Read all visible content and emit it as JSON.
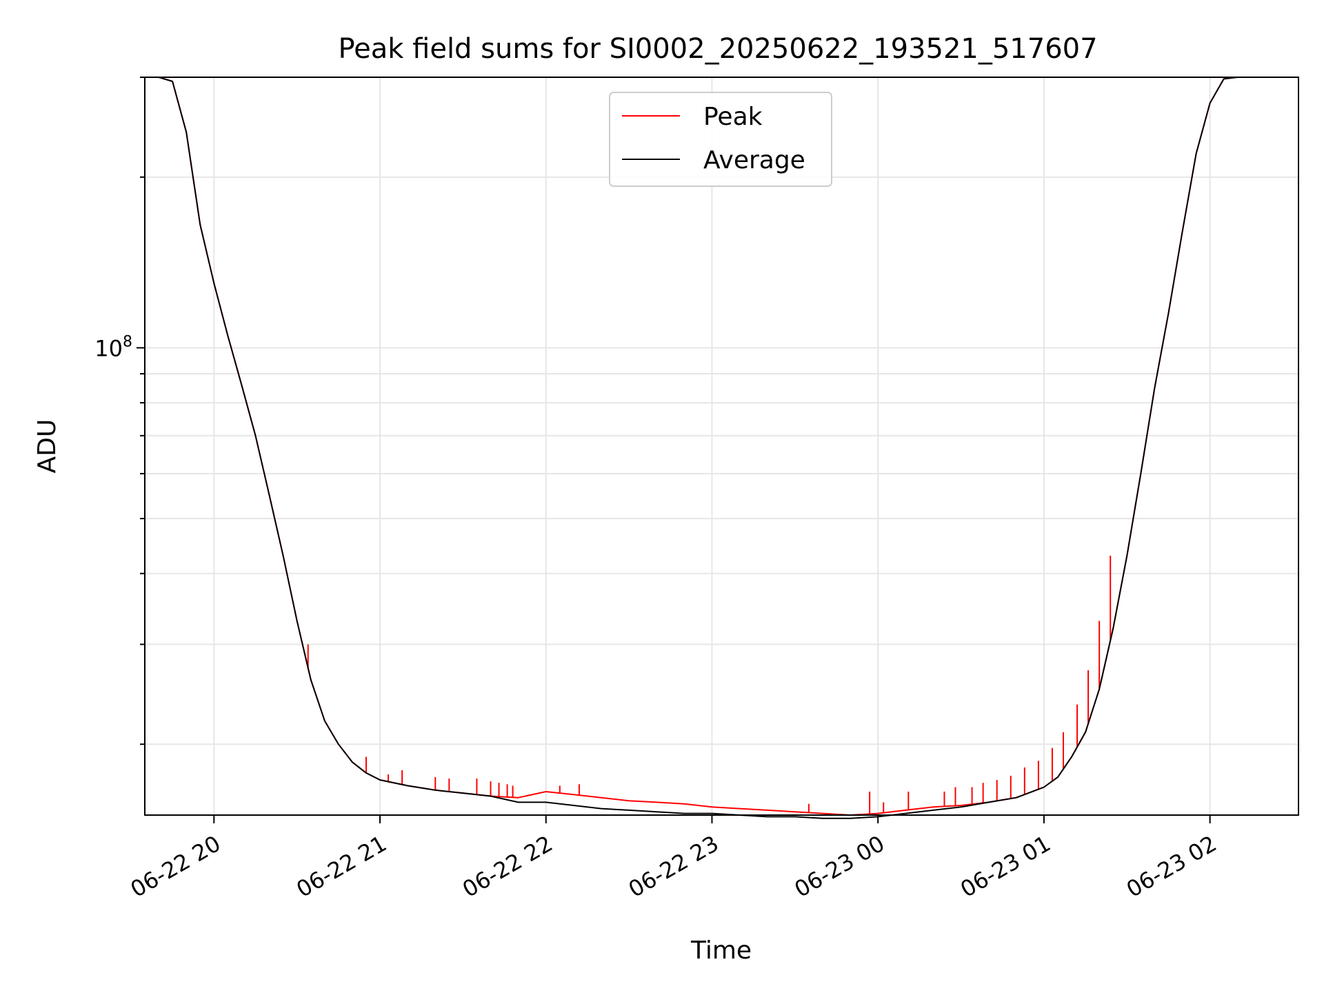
{
  "chart_data": {
    "type": "line",
    "title": "Peak field sums for SI0002_20250622_193521_517607",
    "xlabel": "Time",
    "ylabel": "ADU",
    "y_scale": "log",
    "ylim": [
      15000000,
      300000000
    ],
    "xlim": [
      "06-22 19:35",
      "06-23 02:32"
    ],
    "x_ticks": [
      "06-22 20",
      "06-22 21",
      "06-22 22",
      "06-22 23",
      "06-23 00",
      "06-23 01",
      "06-23 02"
    ],
    "y_tick_labels": [
      {
        "value": 100000000,
        "base": "10",
        "exponent": "8"
      }
    ],
    "grid": true,
    "legend_position": "top-center",
    "series": [
      {
        "name": "Peak",
        "color": "#ff0000",
        "x": [
          "06-22 19:35",
          "06-22 19:40",
          "06-22 19:45",
          "06-22 19:50",
          "06-22 19:55",
          "06-22 20:00",
          "06-22 20:05",
          "06-22 20:10",
          "06-22 20:15",
          "06-22 20:20",
          "06-22 20:25",
          "06-22 20:30",
          "06-22 20:35",
          "06-22 20:40",
          "06-22 20:45",
          "06-22 20:50",
          "06-22 20:55",
          "06-22 21:00",
          "06-22 21:10",
          "06-22 21:20",
          "06-22 21:30",
          "06-22 21:40",
          "06-22 21:50",
          "06-22 22:00",
          "06-22 22:10",
          "06-22 22:20",
          "06-22 22:30",
          "06-22 22:40",
          "06-22 22:50",
          "06-22 23:00",
          "06-22 23:10",
          "06-22 23:20",
          "06-22 23:30",
          "06-22 23:40",
          "06-22 23:50",
          "06-23 00:00",
          "06-23 00:10",
          "06-23 00:20",
          "06-23 00:30",
          "06-23 00:40",
          "06-23 00:50",
          "06-23 01:00",
          "06-23 01:05",
          "06-23 01:10",
          "06-23 01:15",
          "06-23 01:20",
          "06-23 01:25",
          "06-23 01:30",
          "06-23 01:35",
          "06-23 01:40",
          "06-23 01:45",
          "06-23 01:50",
          "06-23 01:55",
          "06-23 02:00",
          "06-23 02:05",
          "06-23 02:10",
          "06-23 02:15",
          "06-23 02:20",
          "06-23 02:25",
          "06-23 02:32"
        ],
        "values": [
          300000000,
          300000000,
          295000000,
          240000000,
          165000000,
          130000000,
          105000000,
          86000000,
          70000000,
          55000000,
          43000000,
          33000000,
          26000000,
          22000000,
          20000000,
          18600000,
          17800000,
          17300000,
          16900000,
          16600000,
          16400000,
          16200000,
          16100000,
          16500000,
          16300000,
          16100000,
          15900000,
          15800000,
          15700000,
          15500000,
          15400000,
          15300000,
          15200000,
          15100000,
          15000000,
          15100000,
          15300000,
          15500000,
          15600000,
          15800000,
          16100000,
          16800000,
          17500000,
          19000000,
          21000000,
          25000000,
          32000000,
          43000000,
          60000000,
          85000000,
          115000000,
          160000000,
          220000000,
          270000000,
          298000000,
          300000000,
          300000000,
          300000000,
          300000000,
          300000000
        ],
        "spikes": [
          {
            "x": "06-22 20:34",
            "y": 30000000
          },
          {
            "x": "06-22 20:55",
            "y": 19000000
          },
          {
            "x": "06-22 21:03",
            "y": 17700000
          },
          {
            "x": "06-22 21:08",
            "y": 18000000
          },
          {
            "x": "06-22 21:20",
            "y": 17500000
          },
          {
            "x": "06-22 21:25",
            "y": 17400000
          },
          {
            "x": "06-22 21:35",
            "y": 17400000
          },
          {
            "x": "06-22 21:40",
            "y": 17200000
          },
          {
            "x": "06-22 21:43",
            "y": 17100000
          },
          {
            "x": "06-22 21:46",
            "y": 17000000
          },
          {
            "x": "06-22 21:48",
            "y": 16900000
          },
          {
            "x": "06-22 22:05",
            "y": 16900000
          },
          {
            "x": "06-22 22:12",
            "y": 17000000
          },
          {
            "x": "06-22 23:35",
            "y": 15700000
          },
          {
            "x": "06-22 23:57",
            "y": 16500000
          },
          {
            "x": "06-23 00:02",
            "y": 15800000
          },
          {
            "x": "06-23 00:11",
            "y": 16500000
          },
          {
            "x": "06-23 00:24",
            "y": 16500000
          },
          {
            "x": "06-23 00:28",
            "y": 16800000
          },
          {
            "x": "06-23 00:34",
            "y": 16800000
          },
          {
            "x": "06-23 00:38",
            "y": 17100000
          },
          {
            "x": "06-23 00:43",
            "y": 17300000
          },
          {
            "x": "06-23 00:48",
            "y": 17600000
          },
          {
            "x": "06-23 00:53",
            "y": 18200000
          },
          {
            "x": "06-23 00:58",
            "y": 18700000
          },
          {
            "x": "06-23 01:03",
            "y": 19700000
          },
          {
            "x": "06-23 01:07",
            "y": 21000000
          },
          {
            "x": "06-23 01:12",
            "y": 23500000
          },
          {
            "x": "06-23 01:16",
            "y": 27000000
          },
          {
            "x": "06-23 01:20",
            "y": 33000000
          },
          {
            "x": "06-23 01:24",
            "y": 43000000
          }
        ]
      },
      {
        "name": "Average",
        "color": "#000000",
        "x": [
          "06-22 19:35",
          "06-22 19:40",
          "06-22 19:45",
          "06-22 19:50",
          "06-22 19:55",
          "06-22 20:00",
          "06-22 20:05",
          "06-22 20:10",
          "06-22 20:15",
          "06-22 20:20",
          "06-22 20:25",
          "06-22 20:30",
          "06-22 20:35",
          "06-22 20:40",
          "06-22 20:45",
          "06-22 20:50",
          "06-22 20:55",
          "06-22 21:00",
          "06-22 21:10",
          "06-22 21:20",
          "06-22 21:30",
          "06-22 21:40",
          "06-22 21:50",
          "06-22 22:00",
          "06-22 22:10",
          "06-22 22:20",
          "06-22 22:30",
          "06-22 22:40",
          "06-22 22:50",
          "06-22 23:00",
          "06-22 23:10",
          "06-22 23:20",
          "06-22 23:30",
          "06-22 23:40",
          "06-22 23:50",
          "06-23 00:00",
          "06-23 00:10",
          "06-23 00:20",
          "06-23 00:30",
          "06-23 00:40",
          "06-23 00:50",
          "06-23 01:00",
          "06-23 01:05",
          "06-23 01:10",
          "06-23 01:15",
          "06-23 01:20",
          "06-23 01:25",
          "06-23 01:30",
          "06-23 01:35",
          "06-23 01:40",
          "06-23 01:45",
          "06-23 01:50",
          "06-23 01:55",
          "06-23 02:00",
          "06-23 02:05",
          "06-23 02:10",
          "06-23 02:15",
          "06-23 02:20",
          "06-23 02:25",
          "06-23 02:32"
        ],
        "values": [
          300000000,
          300000000,
          295000000,
          240000000,
          165000000,
          130000000,
          105000000,
          86000000,
          70000000,
          55000000,
          43000000,
          33000000,
          26000000,
          22000000,
          20000000,
          18600000,
          17800000,
          17300000,
          16900000,
          16600000,
          16400000,
          16200000,
          15800000,
          15800000,
          15600000,
          15400000,
          15300000,
          15200000,
          15100000,
          15100000,
          15000000,
          14900000,
          14900000,
          14800000,
          14800000,
          14900000,
          15100000,
          15300000,
          15500000,
          15800000,
          16100000,
          16800000,
          17500000,
          19000000,
          21000000,
          25000000,
          32000000,
          43000000,
          60000000,
          85000000,
          115000000,
          160000000,
          220000000,
          270000000,
          298000000,
          300000000,
          300000000,
          300000000,
          300000000,
          300000000
        ]
      }
    ]
  }
}
